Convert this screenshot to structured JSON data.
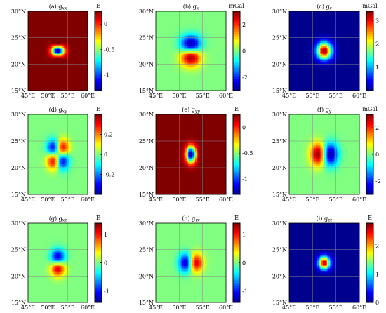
{
  "chart_data": [
    {
      "type": "heatmap",
      "title": "(a) g",
      "title_sub": "xx",
      "unit": "E",
      "field": "gxx",
      "peak": -1.3,
      "bg": 0.25,
      "colorbar_ticks": [
        {
          "v": 0,
          "label": "0"
        },
        {
          "v": -0.5,
          "label": "-0.5"
        },
        {
          "v": -1,
          "label": "-1"
        }
      ],
      "clim": [
        -1.3,
        0.25
      ],
      "x_ticks": [
        "45°E",
        "50°E",
        "55°E",
        "60°E"
      ],
      "y_ticks": [
        "15°N",
        "20°N",
        "25°N",
        "30°N"
      ],
      "xlim": [
        45,
        60
      ],
      "ylim": [
        15,
        30
      ]
    },
    {
      "type": "heatmap",
      "title": "(b) g",
      "title_sub": "x",
      "unit": "mGal",
      "field": "gx",
      "peak": 2.8,
      "bg": 0,
      "colorbar_ticks": [
        {
          "v": 2,
          "label": "2"
        },
        {
          "v": 0,
          "label": "0"
        },
        {
          "v": -2,
          "label": "-2"
        }
      ],
      "clim": [
        -3,
        3
      ],
      "x_ticks": [
        "45°E",
        "50°E",
        "55°E",
        "60°E"
      ],
      "y_ticks": [
        "15°N",
        "20°N",
        "25°N",
        "30°N"
      ],
      "xlim": [
        45,
        60
      ],
      "ylim": [
        15,
        30
      ]
    },
    {
      "type": "heatmap",
      "title": "(c) g",
      "title_sub": "z",
      "unit": "mGal",
      "field": "gz",
      "peak": 3.3,
      "bg": 0,
      "colorbar_ticks": [
        {
          "v": 3,
          "label": "3"
        },
        {
          "v": 2,
          "label": "2"
        },
        {
          "v": 1,
          "label": "1"
        }
      ],
      "clim": [
        0,
        3.4
      ],
      "x_ticks": [
        "45°E",
        "50°E",
        "55°E",
        "60°E"
      ],
      "y_ticks": [
        "15°N",
        "20°N",
        "25°N",
        "30°N"
      ],
      "xlim": [
        45,
        60
      ],
      "ylim": [
        15,
        30
      ]
    },
    {
      "type": "heatmap",
      "title": "(d) g",
      "title_sub": "xy",
      "unit": "E",
      "field": "gxy",
      "peak": 0.4,
      "bg": 0,
      "colorbar_ticks": [
        {
          "v": 0.2,
          "label": "0.2"
        },
        {
          "v": 0,
          "label": "0"
        },
        {
          "v": -0.2,
          "label": "-0.2"
        }
      ],
      "clim": [
        -0.4,
        0.4
      ],
      "x_ticks": [
        "45°E",
        "50°E",
        "55°E",
        "60°E"
      ],
      "y_ticks": [
        "15°N",
        "20°N",
        "25°N",
        "30°N"
      ],
      "xlim": [
        45,
        60
      ],
      "ylim": [
        15,
        30
      ]
    },
    {
      "type": "heatmap",
      "title": "(e) g",
      "title_sub": "yy",
      "unit": "E",
      "field": "gyy",
      "peak": -1.3,
      "bg": 0.25,
      "colorbar_ticks": [
        {
          "v": 0,
          "label": "0"
        },
        {
          "v": -0.5,
          "label": "-0.5"
        },
        {
          "v": -1,
          "label": "-1"
        }
      ],
      "clim": [
        -1.3,
        0.25
      ],
      "x_ticks": [
        "45°E",
        "50°E",
        "55°E",
        "60°E"
      ],
      "y_ticks": [
        "15°N",
        "20°N",
        "25°N",
        "30°N"
      ],
      "xlim": [
        45,
        60
      ],
      "ylim": [
        15,
        30
      ]
    },
    {
      "type": "heatmap",
      "title": "(f) g",
      "title_sub": "y",
      "unit": "mGal",
      "field": "gy",
      "peak": 2.8,
      "bg": 0,
      "colorbar_ticks": [
        {
          "v": 2,
          "label": "2"
        },
        {
          "v": 0,
          "label": "0"
        },
        {
          "v": -2,
          "label": "-2"
        }
      ],
      "clim": [
        -3,
        3
      ],
      "x_ticks": [
        "45°E",
        "50°E",
        "55°E",
        "60°E"
      ],
      "y_ticks": [
        "15°N",
        "20°N",
        "25°N",
        "30°N"
      ],
      "xlim": [
        45,
        60
      ],
      "ylim": [
        15,
        30
      ]
    },
    {
      "type": "heatmap",
      "title": "(g) g",
      "title_sub": "xz",
      "unit": "E",
      "field": "gxz",
      "peak": 1.3,
      "bg": 0,
      "colorbar_ticks": [
        {
          "v": 1,
          "label": "1"
        },
        {
          "v": 0,
          "label": "0"
        },
        {
          "v": -1,
          "label": "-1"
        }
      ],
      "clim": [
        -1.4,
        1.4
      ],
      "x_ticks": [
        "45°E",
        "50°E",
        "55°E",
        "60°E"
      ],
      "y_ticks": [
        "15°N",
        "20°N",
        "25°N",
        "30°N"
      ],
      "xlim": [
        45,
        60
      ],
      "ylim": [
        15,
        30
      ]
    },
    {
      "type": "heatmap",
      "title": "(h) g",
      "title_sub": "yz",
      "unit": "E",
      "field": "gyz",
      "peak": 1.3,
      "bg": 0,
      "colorbar_ticks": [
        {
          "v": 1,
          "label": "1"
        },
        {
          "v": 0,
          "label": "0"
        },
        {
          "v": -1,
          "label": "-1"
        }
      ],
      "clim": [
        -1.4,
        1.4
      ],
      "x_ticks": [
        "45°E",
        "50°E",
        "55°E",
        "60°E"
      ],
      "y_ticks": [
        "15°N",
        "20°N",
        "25°N",
        "30°N"
      ],
      "xlim": [
        45,
        60
      ],
      "ylim": [
        15,
        30
      ]
    },
    {
      "type": "heatmap",
      "title": "(i) g",
      "title_sub": "zz",
      "unit": "E",
      "field": "gzz",
      "peak": 2.6,
      "bg": 0,
      "colorbar_ticks": [
        {
          "v": 2,
          "label": "2"
        },
        {
          "v": 1,
          "label": "1"
        },
        {
          "v": 0,
          "label": "0"
        }
      ],
      "clim": [
        0,
        2.8
      ],
      "x_ticks": [
        "45°E",
        "50°E",
        "55°E",
        "60°E"
      ],
      "y_ticks": [
        "15°N",
        "20°N",
        "25°N",
        "30°N"
      ],
      "xlim": [
        45,
        60
      ],
      "ylim": [
        15,
        30
      ]
    }
  ],
  "anomaly_center": {
    "lon": 52.5,
    "lat": 22.5
  },
  "colormap": [
    "#00008f",
    "#0000ff",
    "#0080ff",
    "#00ffff",
    "#80ff80",
    "#ffff00",
    "#ff8000",
    "#ff0000",
    "#800000"
  ]
}
